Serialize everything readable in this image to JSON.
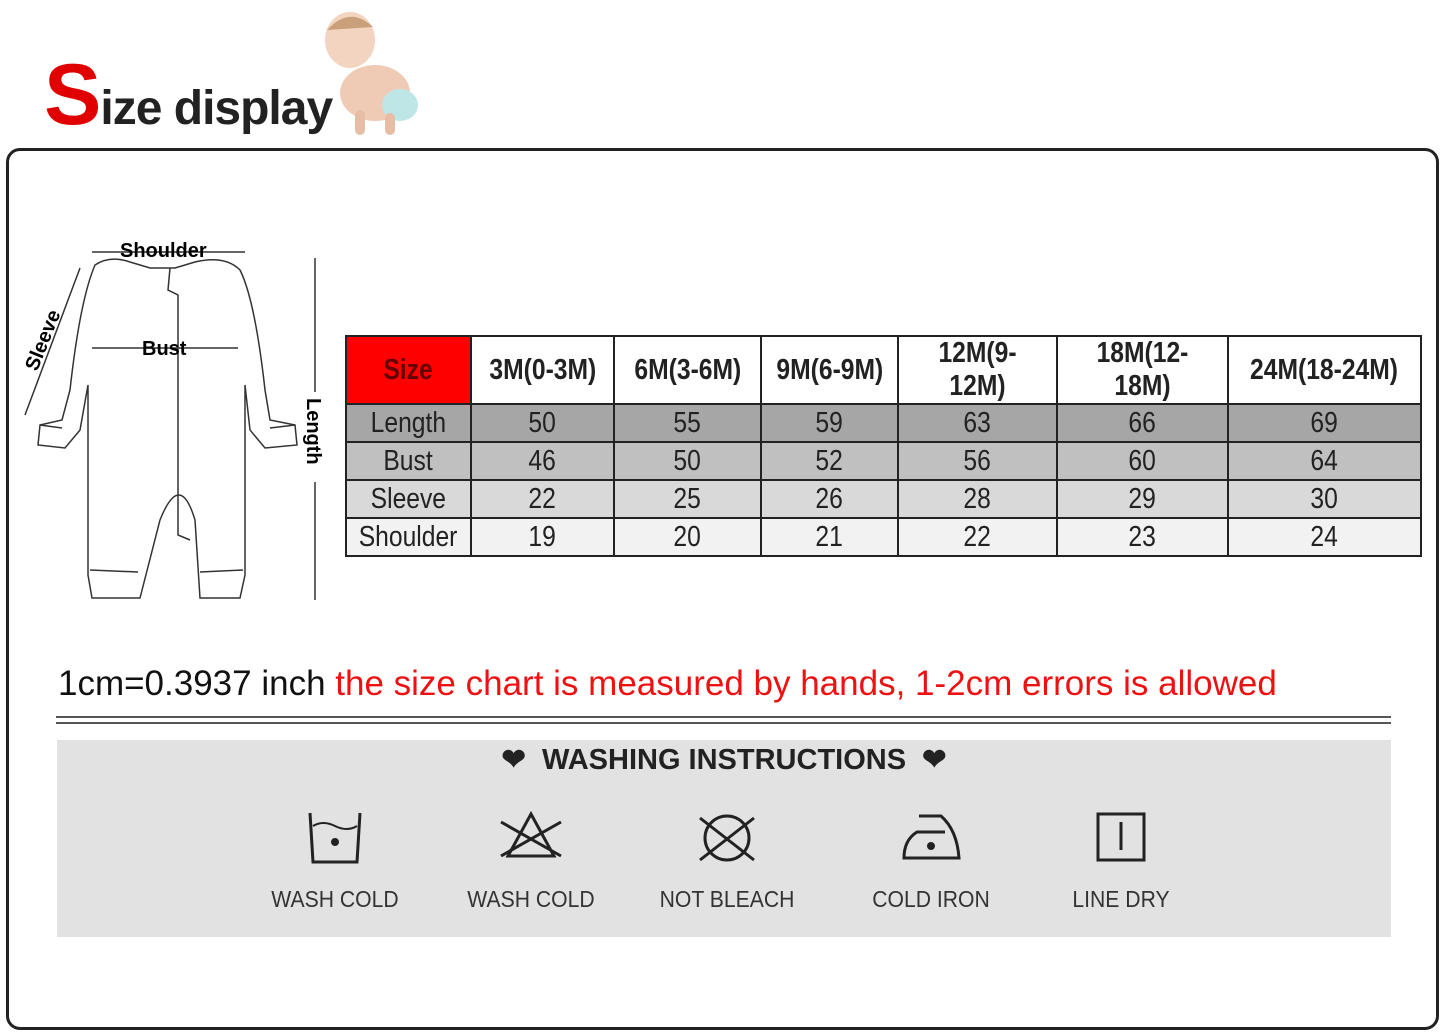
{
  "title": {
    "first_letter": "S",
    "rest": "ize display"
  },
  "diagram": {
    "shoulder": "Shoulder",
    "bust": "Bust",
    "sleeve": "Sleeve",
    "length": "Length"
  },
  "table": {
    "header": [
      "Size",
      "3M(0-3M)",
      "6M(3-6M)",
      "9M(6-9M)",
      "12M(9-12M)",
      "18M(12-18M)",
      "24M(18-24M)"
    ],
    "rows": [
      [
        "Length",
        "50",
        "55",
        "59",
        "63",
        "66",
        "69"
      ],
      [
        "Bust",
        "46",
        "50",
        "52",
        "56",
        "60",
        "64"
      ],
      [
        "Sleeve",
        "22",
        "25",
        "26",
        "28",
        "29",
        "30"
      ],
      [
        "Shoulder",
        "19",
        "20",
        "21",
        "22",
        "23",
        "24"
      ]
    ],
    "header_color": "#ff0000"
  },
  "note": {
    "conversion": "1cm=0.3937 inch",
    "disclaimer": "the size chart is measured by hands, 1-2cm errors is allowed"
  },
  "washing": {
    "title": "WASHING INSTRUCTIONS",
    "items": [
      {
        "label": "WASH COLD",
        "icon": "wash-tub-icon"
      },
      {
        "label": "WASH COLD",
        "icon": "no-bleach-triangle-icon"
      },
      {
        "label": "NOT BLEACH",
        "icon": "no-tumble-dry-icon"
      },
      {
        "label": "COLD IRON",
        "icon": "iron-icon"
      },
      {
        "label": "LINE DRY",
        "icon": "line-dry-icon"
      }
    ]
  }
}
